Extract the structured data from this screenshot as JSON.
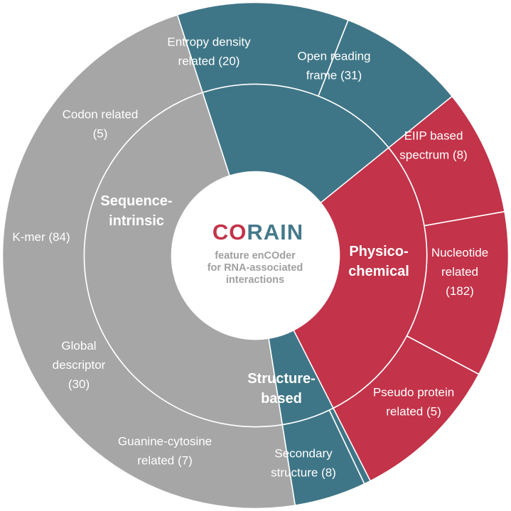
{
  "center": {
    "logo_prefix": "CO",
    "logo_suffix": "RAIN",
    "subtitle_lines": [
      "feature enCOder",
      "for RNA-associated",
      "interactions"
    ],
    "colors": {
      "logo_prefix": "#c33349",
      "logo_suffix": "#45798a",
      "subtitle": "#a0a0a0"
    }
  },
  "chart_data": {
    "type": "sunburst",
    "categories": [
      {
        "name": "Sequence-intrinsic",
        "label_lines": [
          "Sequence-",
          "intrinsic"
        ],
        "color": "#3f7687",
        "children": [
          {
            "label_lines": [
              "Guanine-cytosine",
              "related (7)"
            ],
            "value": 7
          },
          {
            "label_lines": [
              "Global",
              "descriptor",
              "(30)"
            ],
            "value": 30
          },
          {
            "label_lines": [
              "K-mer (84)"
            ],
            "value": 84
          },
          {
            "label_lines": [
              "Codon related",
              "(5)"
            ],
            "value": 5
          },
          {
            "label_lines": [
              "Entropy density",
              "related (20)"
            ],
            "value": 20
          },
          {
            "label_lines": [
              "Open reading",
              "frame (31)"
            ],
            "value": 31
          }
        ]
      },
      {
        "name": "Physico-chemical",
        "label_lines": [
          "Physico-",
          "chemical"
        ],
        "color": "#c33349",
        "children": [
          {
            "label_lines": [
              "EIIP based",
              "spectrum (8)"
            ],
            "value": 8
          },
          {
            "label_lines": [
              "Nucleotide",
              "related",
              "(182)"
            ],
            "value": 182
          },
          {
            "label_lines": [
              "Pseudo protein",
              "related (5)"
            ],
            "value": 5
          }
        ]
      },
      {
        "name": "Structure-based",
        "label_lines": [
          "Structure-",
          "based"
        ],
        "color": "#a6a6a6",
        "children": [
          {
            "label_lines": [
              "Secondary",
              "structure (8)"
            ],
            "value": 8
          }
        ]
      }
    ]
  }
}
